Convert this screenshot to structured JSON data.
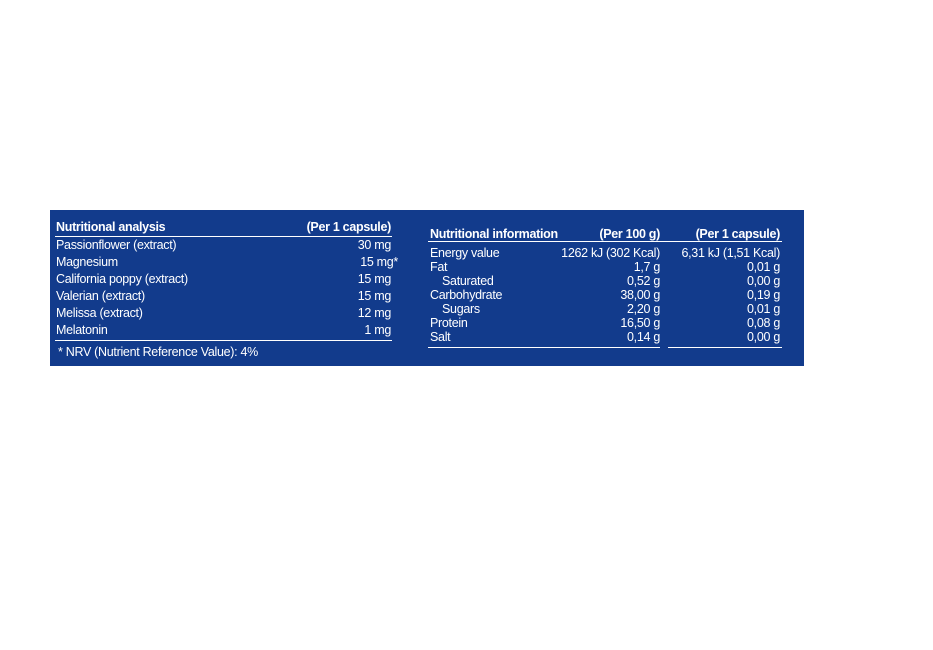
{
  "analysis": {
    "header": [
      "Nutritional analysis",
      "(Per 1 capsule)"
    ],
    "rows": [
      [
        "Passionflower (extract)",
        "30 mg"
      ],
      [
        "Magnesium",
        "15 mg*"
      ],
      [
        "California poppy (extract)",
        "15 mg"
      ],
      [
        "Valerian (extract)",
        "15 mg"
      ],
      [
        "Melissa (extract)",
        "12 mg"
      ],
      [
        "Melatonin",
        "1 mg"
      ]
    ],
    "footnote": "* NRV (Nutrient Reference Value): 4%"
  },
  "information": {
    "header": [
      "Nutritional information",
      "(Per 100 g)",
      "(Per 1 capsule)"
    ],
    "rows": [
      [
        "Energy value",
        "1262 kJ (302 Kcal)",
        "6,31 kJ (1,51 Kcal)"
      ],
      [
        "Fat",
        "1,7 g",
        "0,01 g"
      ],
      [
        "Saturated",
        "0,52 g",
        "0,00 g"
      ],
      [
        "Carbohydrate",
        "38,00 g",
        "0,19 g"
      ],
      [
        "Sugars",
        "2,20 g",
        "0,01 g"
      ],
      [
        "Protein",
        "16,50 g",
        "0,08 g"
      ],
      [
        "Salt",
        "0,14 g",
        "0,00 g"
      ]
    ]
  }
}
